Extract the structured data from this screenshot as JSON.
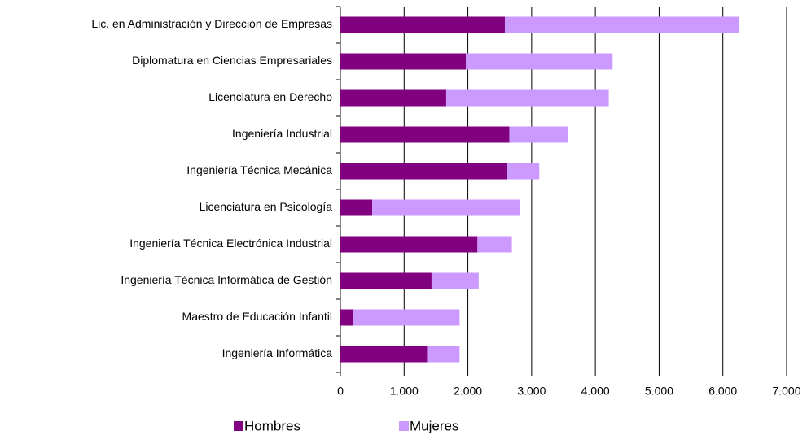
{
  "chart_data": {
    "type": "barh_stacked",
    "categories": [
      "Lic. en Administración y Dirección de Empresas",
      "Diplomatura en Ciencias Empresariales",
      "Licenciatura en Derecho",
      "Ingeniería Industrial",
      "Ingeniería Técnica Mecánica",
      "Licenciatura en Psicología",
      "Ingeniería Técnica Electrónica Industrial",
      "Ingeniería Técnica Informática de Gestión",
      "Maestro de Educación Infantil",
      "Ingeniería Informática"
    ],
    "series": [
      {
        "name": "Hombres",
        "color": "#800080",
        "values": [
          2580,
          1970,
          1660,
          2650,
          2610,
          500,
          2150,
          1430,
          200,
          1360
        ]
      },
      {
        "name": "Mujeres",
        "color": "#cc99ff",
        "values": [
          3680,
          2300,
          2550,
          920,
          510,
          2320,
          540,
          740,
          1670,
          510
        ]
      }
    ],
    "xlim": [
      0,
      7000
    ],
    "xticks": [
      0,
      {
        "value": 1000,
        "label": "1.000"
      },
      {
        "value": 2000,
        "label": "2.000"
      },
      {
        "value": 3000,
        "label": "3.000"
      },
      {
        "value": 4000,
        "label": "4.000"
      },
      {
        "value": 5000,
        "label": "5.000"
      },
      {
        "value": 6000,
        "label": "6.000"
      },
      {
        "value": 7000,
        "label": "7.000"
      }
    ],
    "grid": true,
    "legend": "bottom"
  }
}
